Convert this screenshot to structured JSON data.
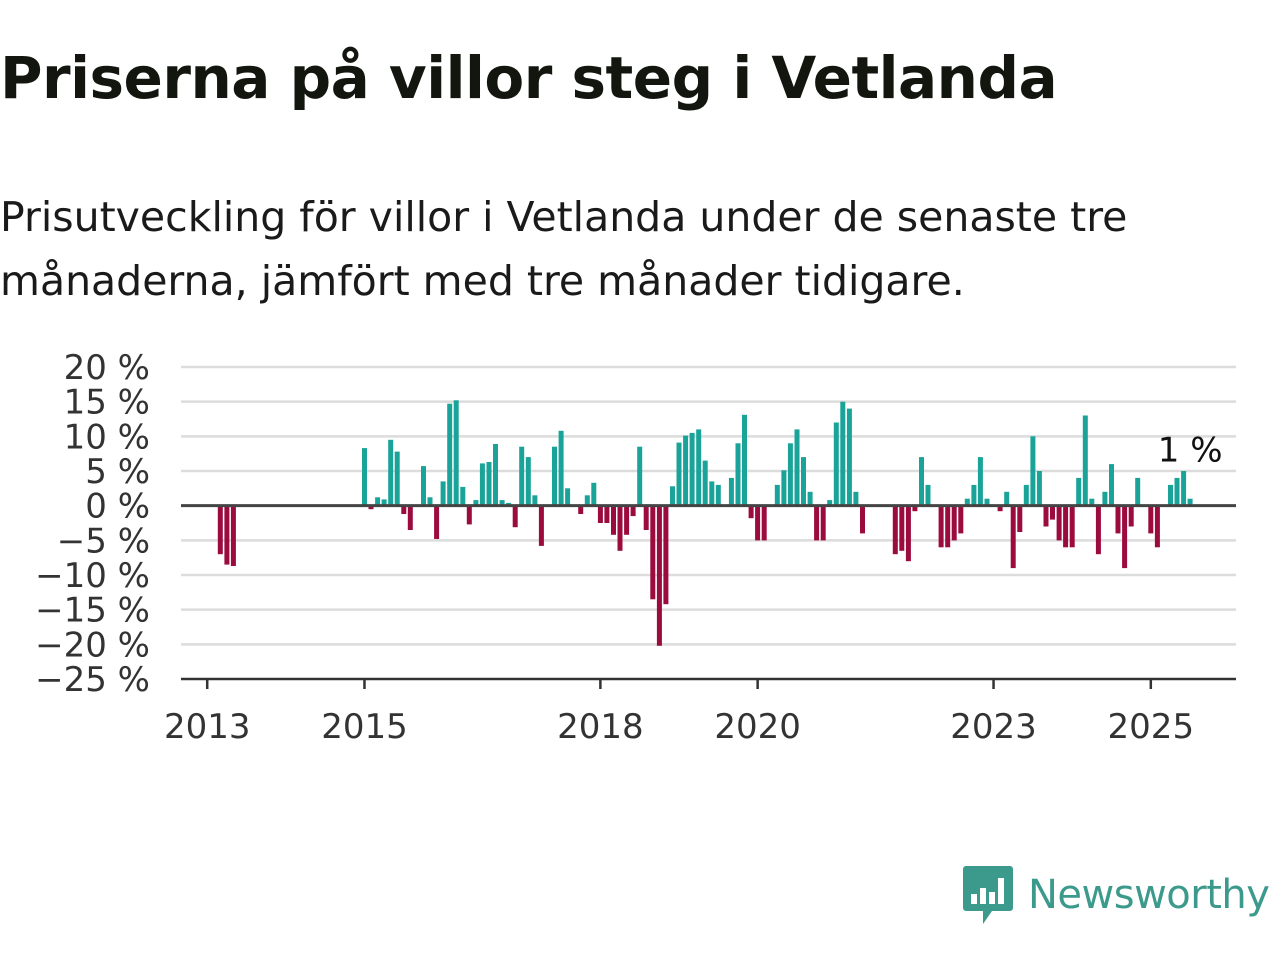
{
  "title": "Priserna på villor steg i Vetlanda",
  "subtitle": "Prisutveckling för villor i Vetlanda under de senaste tre månaderna, jämfört med tre månader tidigare.",
  "brand": {
    "name": "Newsworthy",
    "icon": "newsworthy-logo-icon"
  },
  "colors": {
    "positive": "#1aa399",
    "negative": "#9c0b3e",
    "zero_line": "#444444",
    "grid": "#dcdcdc",
    "brand": "#3c9a8c"
  },
  "chart_data": {
    "type": "bar",
    "title": "",
    "xlabel": "",
    "ylabel": "",
    "ylim": [
      -25,
      20
    ],
    "y_ticks": [
      20,
      15,
      10,
      5,
      0,
      -5,
      -10,
      -15,
      -20,
      -25
    ],
    "y_tick_labels": [
      "20 %",
      "15 %",
      "10 %",
      "5 %",
      "0 %",
      "−5 %",
      "−10 %",
      "−15 %",
      "−20 %",
      "−25 %"
    ],
    "x_ticks": [
      "2013-01",
      "2015-01",
      "2018-01",
      "2020-01",
      "2023-01",
      "2025-01"
    ],
    "x_tick_labels": [
      "2013",
      "2015",
      "2018",
      "2020",
      "2023",
      "2025"
    ],
    "x_range": [
      "2012-09",
      "2026-02"
    ],
    "grid": true,
    "annotation": {
      "text": "1 %",
      "x": "2025-07",
      "value": 1
    },
    "series": [
      {
        "points": [
          [
            "2013-03",
            -7
          ],
          [
            "2013-04",
            -8.5
          ],
          [
            "2013-05",
            -8.7
          ],
          [
            "2015-01",
            8.3
          ],
          [
            "2015-02",
            -0.5
          ],
          [
            "2015-03",
            1.2
          ],
          [
            "2015-04",
            0.9
          ],
          [
            "2015-05",
            9.5
          ],
          [
            "2015-06",
            7.8
          ],
          [
            "2015-07",
            -1.2
          ],
          [
            "2015-08",
            -3.5
          ],
          [
            "2015-10",
            5.7
          ],
          [
            "2015-11",
            1.2
          ],
          [
            "2015-12",
            -4.8
          ],
          [
            "2016-01",
            3.5
          ],
          [
            "2016-02",
            14.7
          ],
          [
            "2016-03",
            15.2
          ],
          [
            "2016-04",
            2.7
          ],
          [
            "2016-05",
            -2.7
          ],
          [
            "2016-06",
            0.8
          ],
          [
            "2016-07",
            6.1
          ],
          [
            "2016-08",
            6.3
          ],
          [
            "2016-09",
            8.9
          ],
          [
            "2016-10",
            0.8
          ],
          [
            "2016-11",
            0.4
          ],
          [
            "2016-12",
            -3.1
          ],
          [
            "2017-01",
            8.5
          ],
          [
            "2017-02",
            7
          ],
          [
            "2017-03",
            1.5
          ],
          [
            "2017-04",
            -5.8
          ],
          [
            "2017-06",
            8.5
          ],
          [
            "2017-07",
            10.8
          ],
          [
            "2017-08",
            2.5
          ],
          [
            "2017-10",
            -1.2
          ],
          [
            "2017-11",
            1.5
          ],
          [
            "2017-12",
            3.3
          ],
          [
            "2018-01",
            -2.5
          ],
          [
            "2018-02",
            -2.5
          ],
          [
            "2018-03",
            -4.2
          ],
          [
            "2018-04",
            -6.5
          ],
          [
            "2018-05",
            -4.2
          ],
          [
            "2018-06",
            -1.5
          ],
          [
            "2018-07",
            8.5
          ],
          [
            "2018-08",
            -3.5
          ],
          [
            "2018-09",
            -13.5
          ],
          [
            "2018-10",
            -20.2
          ],
          [
            "2018-11",
            -14.2
          ],
          [
            "2018-12",
            2.8
          ],
          [
            "2019-01",
            9.1
          ],
          [
            "2019-02",
            10.1
          ],
          [
            "2019-03",
            10.5
          ],
          [
            "2019-04",
            11
          ],
          [
            "2019-05",
            6.5
          ],
          [
            "2019-06",
            3.5
          ],
          [
            "2019-07",
            3
          ],
          [
            "2019-09",
            4
          ],
          [
            "2019-10",
            9
          ],
          [
            "2019-11",
            13.1
          ],
          [
            "2019-12",
            -1.8
          ],
          [
            "2020-01",
            -5
          ],
          [
            "2020-02",
            -5
          ],
          [
            "2020-04",
            3
          ],
          [
            "2020-05",
            5.1
          ],
          [
            "2020-06",
            9
          ],
          [
            "2020-07",
            11
          ],
          [
            "2020-08",
            7
          ],
          [
            "2020-09",
            2
          ],
          [
            "2020-10",
            -5
          ],
          [
            "2020-11",
            -5
          ],
          [
            "2020-12",
            0.8
          ],
          [
            "2021-01",
            12
          ],
          [
            "2021-02",
            15
          ],
          [
            "2021-03",
            14
          ],
          [
            "2021-04",
            2
          ],
          [
            "2021-05",
            -4
          ],
          [
            "2021-10",
            -7
          ],
          [
            "2021-11",
            -6.5
          ],
          [
            "2021-12",
            -8
          ],
          [
            "2022-01",
            -0.8
          ],
          [
            "2022-02",
            7
          ],
          [
            "2022-03",
            3
          ],
          [
            "2022-05",
            -6
          ],
          [
            "2022-06",
            -6
          ],
          [
            "2022-07",
            -5
          ],
          [
            "2022-08",
            -4
          ],
          [
            "2022-09",
            1
          ],
          [
            "2022-10",
            3
          ],
          [
            "2022-11",
            7
          ],
          [
            "2022-12",
            1
          ],
          [
            "2023-02",
            -0.8
          ],
          [
            "2023-03",
            2
          ],
          [
            "2023-04",
            -9
          ],
          [
            "2023-05",
            -3.8
          ],
          [
            "2023-06",
            3
          ],
          [
            "2023-07",
            10
          ],
          [
            "2023-08",
            5
          ],
          [
            "2023-09",
            -3
          ],
          [
            "2023-10",
            -2
          ],
          [
            "2023-11",
            -5
          ],
          [
            "2023-12",
            -6
          ],
          [
            "2024-01",
            -6
          ],
          [
            "2024-02",
            4
          ],
          [
            "2024-03",
            13
          ],
          [
            "2024-04",
            1
          ],
          [
            "2024-05",
            -7
          ],
          [
            "2024-06",
            2
          ],
          [
            "2024-07",
            6
          ],
          [
            "2024-08",
            -4
          ],
          [
            "2024-09",
            -9
          ],
          [
            "2024-10",
            -3
          ],
          [
            "2024-11",
            4
          ],
          [
            "2025-01",
            -4
          ],
          [
            "2025-02",
            -6
          ],
          [
            "2025-04",
            3
          ],
          [
            "2025-05",
            4
          ],
          [
            "2025-06",
            5
          ],
          [
            "2025-07",
            1
          ]
        ]
      }
    ]
  }
}
